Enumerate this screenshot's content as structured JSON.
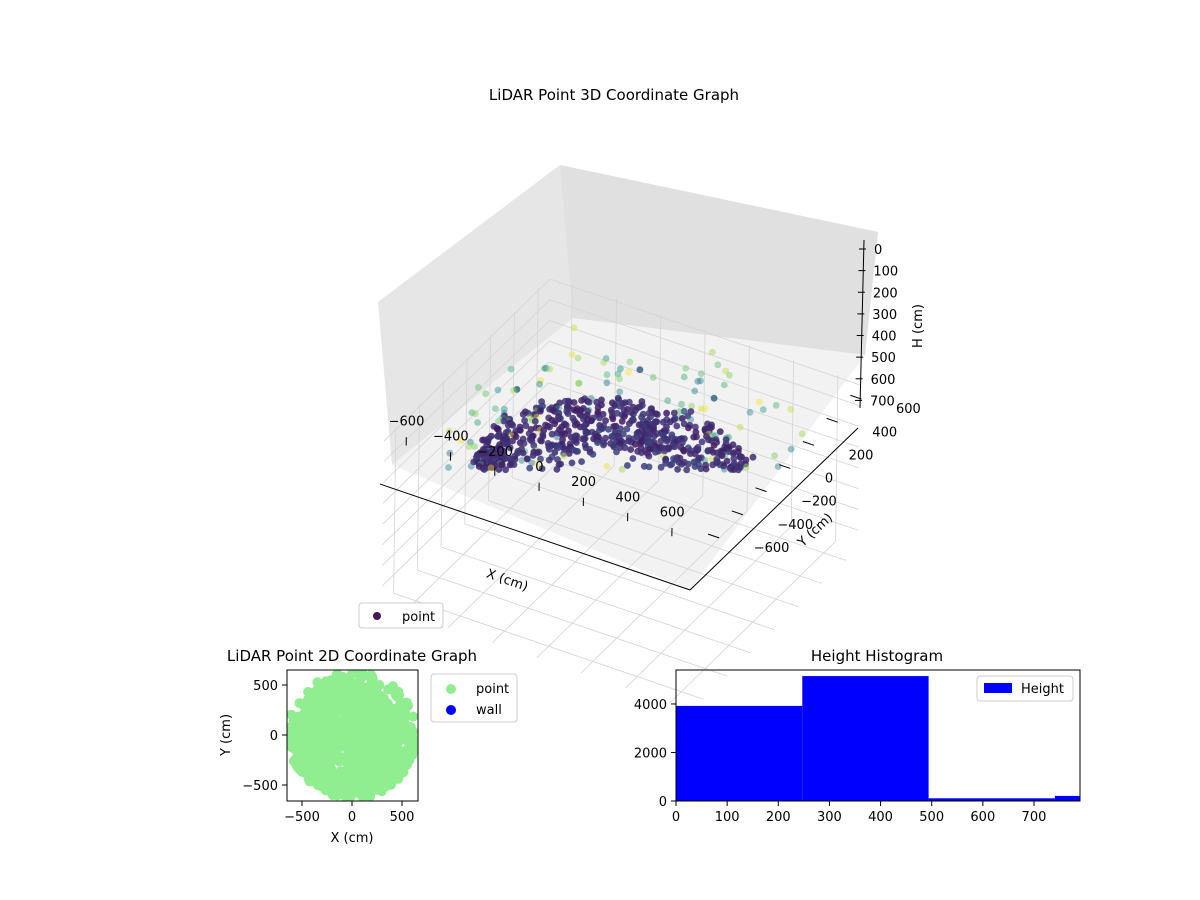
{
  "chart_data": [
    {
      "type": "scatter",
      "projection": "3d",
      "title": "LiDAR Point 3D Coordinate Graph",
      "xlabel": "X (cm)",
      "ylabel": "Y (cm)",
      "zlabel": "H (cm)",
      "xlim": [
        -700,
        700
      ],
      "ylim": [
        -700,
        700
      ],
      "zlim": [
        0,
        760
      ],
      "z_axis_inverted": true,
      "xticks": [
        "−600",
        "−400",
        "−200",
        "0",
        "200",
        "400",
        "600"
      ],
      "yticks": [
        "−600",
        "−400",
        "−200",
        "0",
        "200",
        "400",
        "600"
      ],
      "zticks": [
        "0",
        "100",
        "200",
        "300",
        "400",
        "500",
        "600",
        "700"
      ],
      "grid": true,
      "colormap": "viridis (by height)",
      "series": [
        {
          "name": "point",
          "color": "#46185a",
          "shape": "ring of points, radius ~550 cm, heights 250–480 cm, with sparse outliers 0–250 cm"
        }
      ],
      "legend": {
        "location": "lower-left",
        "entries": [
          "point"
        ]
      }
    },
    {
      "type": "scatter",
      "title": "LiDAR Point 2D Coordinate Graph",
      "xlabel": "X (cm)",
      "ylabel": "Y (cm)",
      "xlim": [
        -650,
        650
      ],
      "ylim": [
        -650,
        650
      ],
      "xticks": [
        "−500",
        "0",
        "500"
      ],
      "yticks": [
        "−500",
        "0",
        "500"
      ],
      "series": [
        {
          "name": "point",
          "color": "#90ee90"
        },
        {
          "name": "wall",
          "color": "#0000ff"
        }
      ],
      "legend": {
        "location": "outside-right",
        "entries": [
          "point",
          "wall"
        ]
      }
    },
    {
      "type": "bar",
      "subtype": "histogram",
      "title": "Height Histogram",
      "xlim": [
        0,
        790
      ],
      "ylim": [
        0,
        5400
      ],
      "xticks": [
        "0",
        "100",
        "200",
        "300",
        "400",
        "500",
        "600",
        "700"
      ],
      "yticks": [
        "0",
        "2000",
        "4000"
      ],
      "bins": [
        {
          "x0": 0,
          "x1": 247,
          "count": 3920
        },
        {
          "x0": 247,
          "x1": 494,
          "count": 5150
        },
        {
          "x0": 494,
          "x1": 741,
          "count": 110
        },
        {
          "x0": 741,
          "x1": 790,
          "count": 210
        }
      ],
      "series": [
        {
          "name": "Height",
          "color": "#0000ff"
        }
      ],
      "legend": {
        "location": "top-right",
        "entries": [
          "Height"
        ]
      }
    }
  ]
}
